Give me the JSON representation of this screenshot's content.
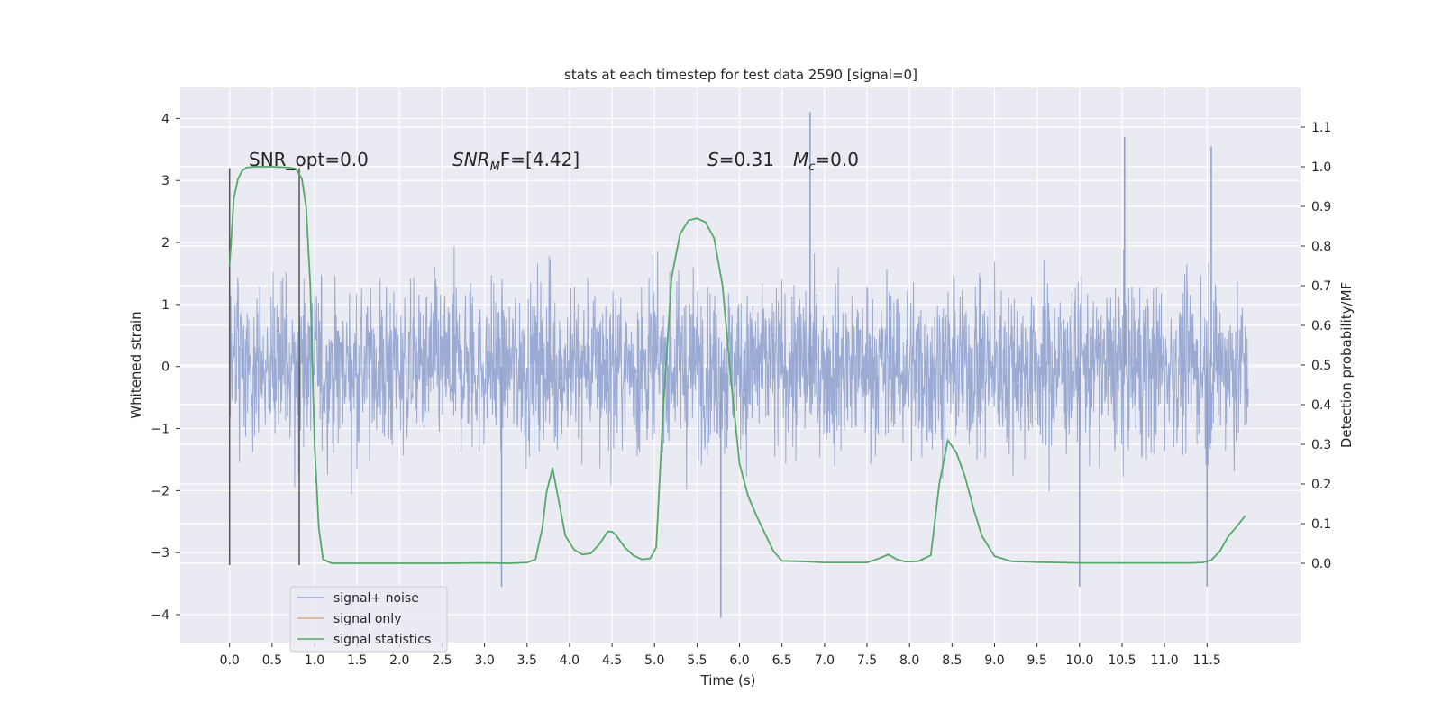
{
  "chart_data": {
    "type": "line",
    "title": "stats at each timestep for test data 2590 [signal=0]",
    "xlabel": "Time (s)",
    "ylabel_left": "Whitened strain",
    "ylabel_right": "Detection probability/MF",
    "xlim": [
      -0.58,
      12.6
    ],
    "ylim_left": [
      -4.45,
      4.5
    ],
    "ylim_right": [
      -0.2,
      1.2
    ],
    "x_ticks": [
      "0.0",
      "0.5",
      "1.0",
      "1.5",
      "2.0",
      "2.5",
      "3.0",
      "3.5",
      "4.0",
      "4.5",
      "5.0",
      "5.5",
      "6.0",
      "6.5",
      "7.0",
      "7.5",
      "8.0",
      "8.5",
      "9.0",
      "9.5",
      "10.0",
      "10.5",
      "11.0",
      "11.5"
    ],
    "y_ticks_left": [
      -4,
      -3,
      -2,
      -1,
      0,
      1,
      2,
      3,
      4
    ],
    "y_ticks_right": [
      0.0,
      0.1,
      0.2,
      0.3,
      0.4,
      0.5,
      0.6,
      0.7,
      0.8,
      0.9,
      1.0,
      1.1
    ],
    "grid": true,
    "legend_position": "lower-left",
    "colors": {
      "noise": "#8c9fcc",
      "signal_only": "#e0a58c",
      "statistics": "#55a868",
      "markers": "#555555",
      "background": "#eaeaf2"
    },
    "annotations": {
      "snr_opt": "SNR_opt=0.0",
      "snr_mf_label": "SNR",
      "snr_mf_sub": "M",
      "snr_mf_value": "F=[4.42]",
      "s_label": "S",
      "s_value": "=0.31",
      "mc_label": "M",
      "mc_sub": "c",
      "mc_value": "=0.0"
    },
    "window_markers_x": [
      0.0,
      0.82
    ],
    "series": [
      {
        "name": "signal+ noise",
        "axis": "left",
        "envelope_note": "dense noisy strain, mostly within ±1.9 with spikes to ~±4",
        "x_range": [
          0.0,
          11.99
        ],
        "spikes": [
          {
            "x": 6.83,
            "y": 4.1
          },
          {
            "x": 5.78,
            "y": -4.05
          },
          {
            "x": 10.53,
            "y": 3.7
          },
          {
            "x": 11.55,
            "y": 3.55
          },
          {
            "x": 11.5,
            "y": -3.55
          },
          {
            "x": 3.2,
            "y": -3.55
          },
          {
            "x": 10.0,
            "y": -3.55
          }
        ]
      },
      {
        "name": "signal only",
        "axis": "left",
        "x": [],
        "y": []
      },
      {
        "name": "signal statistics",
        "axis": "right",
        "x": [
          0.0,
          0.05,
          0.1,
          0.15,
          0.2,
          0.3,
          0.5,
          0.7,
          0.78,
          0.85,
          0.9,
          0.95,
          1.0,
          1.05,
          1.1,
          1.2,
          1.5,
          2.0,
          2.5,
          3.0,
          3.3,
          3.5,
          3.6,
          3.68,
          3.73,
          3.8,
          3.88,
          3.95,
          4.05,
          4.15,
          4.25,
          4.35,
          4.45,
          4.5,
          4.55,
          4.65,
          4.75,
          4.85,
          4.95,
          5.02,
          5.1,
          5.2,
          5.3,
          5.4,
          5.5,
          5.6,
          5.7,
          5.8,
          5.9,
          6.0,
          6.1,
          6.2,
          6.3,
          6.4,
          6.5,
          6.7,
          7.0,
          7.5,
          7.65,
          7.75,
          7.85,
          7.95,
          8.1,
          8.25,
          8.35,
          8.45,
          8.55,
          8.65,
          8.75,
          8.85,
          9.0,
          9.2,
          9.5,
          10.0,
          10.5,
          11.0,
          11.3,
          11.45,
          11.55,
          11.65,
          11.75,
          11.85,
          11.95
        ],
        "y": [
          0.75,
          0.92,
          0.97,
          0.99,
          0.998,
          1.0,
          1.0,
          0.998,
          0.995,
          0.97,
          0.9,
          0.7,
          0.3,
          0.09,
          0.01,
          0.0,
          0.0,
          0.0,
          0.0,
          0.001,
          0.0,
          0.002,
          0.01,
          0.09,
          0.18,
          0.24,
          0.15,
          0.07,
          0.035,
          0.022,
          0.025,
          0.048,
          0.08,
          0.08,
          0.07,
          0.04,
          0.02,
          0.01,
          0.012,
          0.04,
          0.38,
          0.72,
          0.83,
          0.865,
          0.87,
          0.86,
          0.82,
          0.7,
          0.46,
          0.25,
          0.17,
          0.12,
          0.075,
          0.03,
          0.006,
          0.005,
          0.002,
          0.002,
          0.013,
          0.022,
          0.01,
          0.004,
          0.005,
          0.02,
          0.2,
          0.31,
          0.28,
          0.22,
          0.14,
          0.07,
          0.018,
          0.005,
          0.003,
          0.001,
          0.001,
          0.001,
          0.001,
          0.002,
          0.008,
          0.03,
          0.068,
          0.093,
          0.12
        ]
      }
    ]
  }
}
